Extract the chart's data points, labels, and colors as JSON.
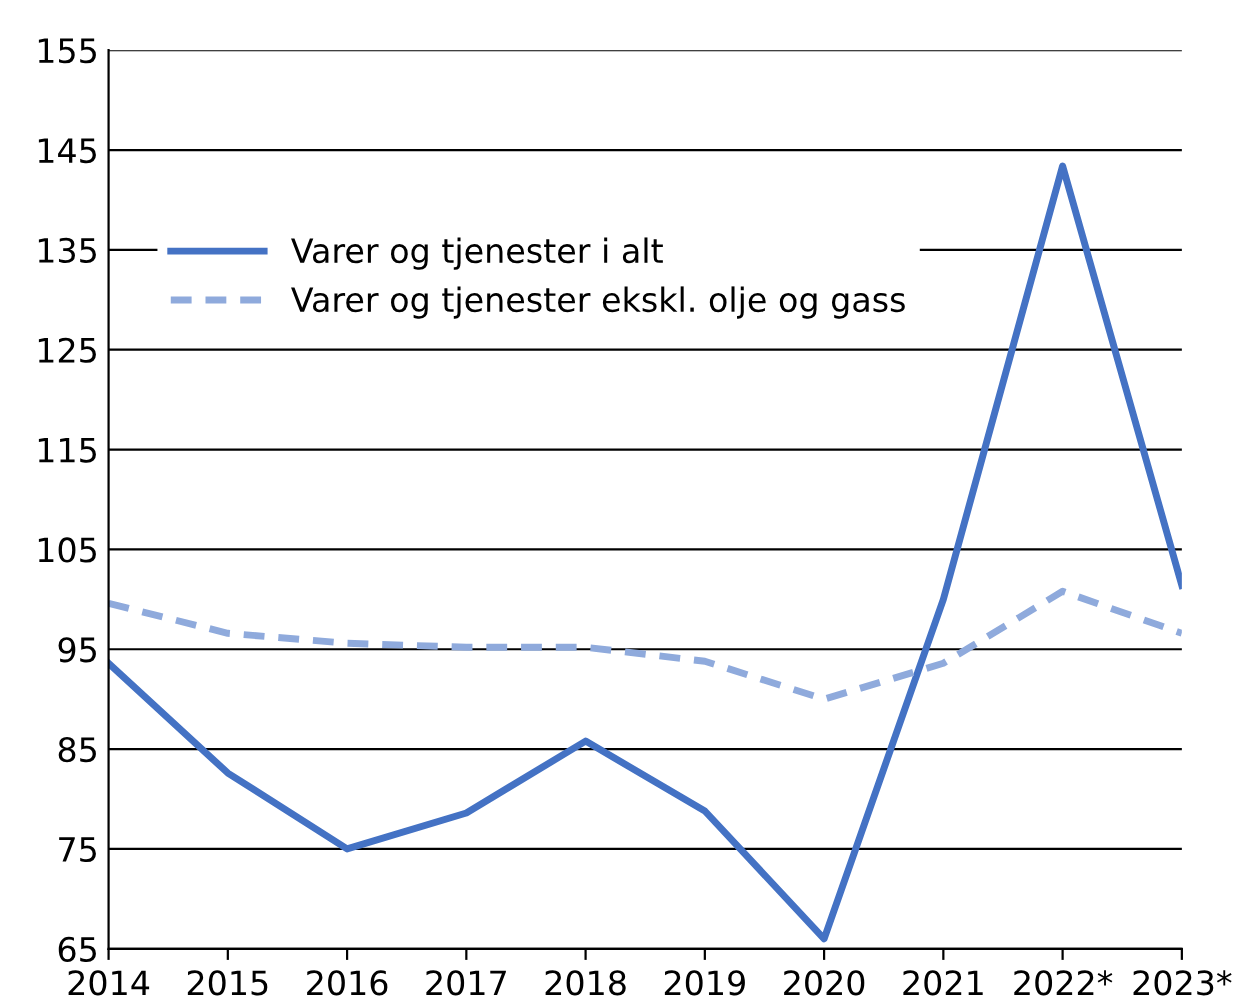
{
  "chart_data": {
    "type": "line",
    "categories": [
      "2014",
      "2015",
      "2016",
      "2017",
      "2018",
      "2019",
      "2020",
      "2021",
      "2022*",
      "2023*"
    ],
    "series": [
      {
        "name": "Varer og tjenester i alt",
        "color": "#4472c4",
        "values": [
          93.6,
          82.6,
          75,
          78.6,
          85.8,
          78.8,
          66,
          100,
          143.4,
          101.4
        ],
        "line_style": "solid"
      },
      {
        "name": "Varer og tjenester ekskl. olje og gass",
        "color": "#8faadc",
        "values": [
          99.6,
          96.6,
          95.6,
          95.2,
          95.2,
          93.8,
          90,
          93.6,
          100.8,
          96.6
        ],
        "line_style": "dashed"
      }
    ],
    "ylim": [
      65,
      155
    ],
    "yticks": [
      65,
      75,
      85,
      95,
      105,
      115,
      125,
      135,
      145,
      155
    ],
    "grid": "y",
    "legend": "top left",
    "marker": "none"
  }
}
